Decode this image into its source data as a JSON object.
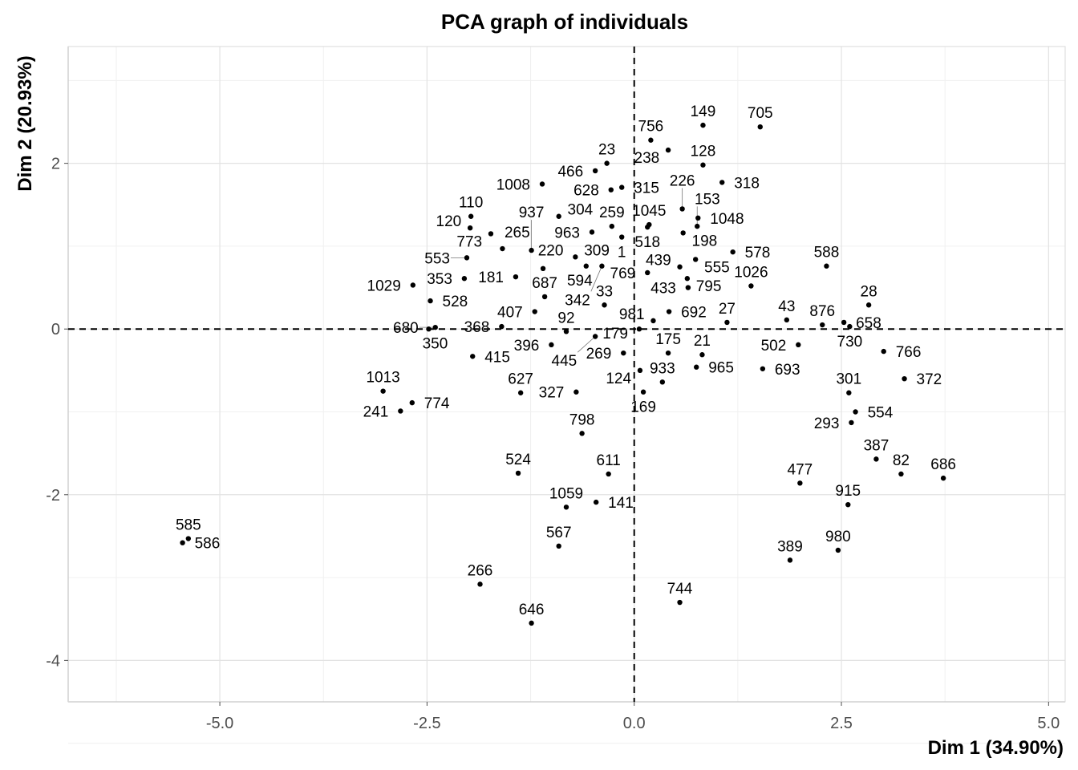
{
  "chart_data": {
    "type": "scatter",
    "title": "PCA graph of individuals",
    "xlabel": "Dim 1 (34.90%)",
    "ylabel": "Dim 2 (20.93%)",
    "xlim": [
      -6.83,
      5.2
    ],
    "ylim": [
      -4.5,
      3.41
    ],
    "x_ticks": [
      -5.0,
      -2.5,
      0.0,
      2.5,
      5.0
    ],
    "x_tick_labels": [
      "-5.0",
      "-2.5",
      "0.0",
      "2.5",
      "5.0"
    ],
    "y_ticks": [
      -4,
      -2,
      0,
      2
    ],
    "y_tick_labels": [
      "-4",
      "-2",
      "0",
      "2"
    ],
    "grid": true,
    "reference_lines": {
      "x": 0,
      "y": 0,
      "style": "dashed"
    },
    "point_color": "#000000",
    "points": [
      {
        "label": "149",
        "x": 0.83,
        "y": 2.46
      },
      {
        "label": "705",
        "x": 1.52,
        "y": 2.44
      },
      {
        "label": "756",
        "x": 0.2,
        "y": 2.28
      },
      {
        "label": "238",
        "x": 0.41,
        "y": 2.16
      },
      {
        "label": "128",
        "x": 0.83,
        "y": 1.98
      },
      {
        "label": "318",
        "x": 1.06,
        "y": 1.77
      },
      {
        "label": "226",
        "x": 0.58,
        "y": 1.45
      },
      {
        "label": "1048",
        "x": 0.77,
        "y": 1.34
      },
      {
        "label": "153",
        "x": 0.76,
        "y": 1.24
      },
      {
        "label": "198",
        "x": 0.59,
        "y": 1.16
      },
      {
        "label": "1045",
        "x": 0.18,
        "y": 1.26
      },
      {
        "label": "518",
        "x": 0.16,
        "y": 1.23
      },
      {
        "label": "578",
        "x": 1.19,
        "y": 0.93
      },
      {
        "label": "555",
        "x": 0.74,
        "y": 0.84
      },
      {
        "label": "439",
        "x": 0.55,
        "y": 0.75
      },
      {
        "label": "795",
        "x": 0.64,
        "y": 0.61
      },
      {
        "label": "433",
        "x": 0.65,
        "y": 0.5
      },
      {
        "label": "769",
        "x": 0.16,
        "y": 0.68
      },
      {
        "label": "1026",
        "x": 1.41,
        "y": 0.52
      },
      {
        "label": "692",
        "x": 0.42,
        "y": 0.21
      },
      {
        "label": "981",
        "x": 0.23,
        "y": 0.1
      },
      {
        "label": "179",
        "x": 0.06,
        "y": 0.0
      },
      {
        "label": "27",
        "x": 1.12,
        "y": 0.08
      },
      {
        "label": "43",
        "x": 1.84,
        "y": 0.11
      },
      {
        "label": "588",
        "x": 2.32,
        "y": 0.76
      },
      {
        "label": "28",
        "x": 2.83,
        "y": 0.29
      },
      {
        "label": "876",
        "x": 2.27,
        "y": 0.05
      },
      {
        "label": "658",
        "x": 2.53,
        "y": 0.08
      },
      {
        "label": "730",
        "x": 2.6,
        "y": 0.03
      },
      {
        "label": "23",
        "x": -0.33,
        "y": 2.0
      },
      {
        "label": "466",
        "x": -0.47,
        "y": 1.91
      },
      {
        "label": "628",
        "x": -0.28,
        "y": 1.68
      },
      {
        "label": "315",
        "x": -0.15,
        "y": 1.71
      },
      {
        "label": "1008",
        "x": -1.11,
        "y": 1.75
      },
      {
        "label": "304",
        "x": -0.91,
        "y": 1.36
      },
      {
        "label": "963",
        "x": -0.51,
        "y": 1.17
      },
      {
        "label": "259",
        "x": -0.27,
        "y": 1.24
      },
      {
        "label": "1",
        "x": -0.15,
        "y": 1.11
      },
      {
        "label": "110",
        "x": -1.97,
        "y": 1.36
      },
      {
        "label": "120",
        "x": -1.98,
        "y": 1.22
      },
      {
        "label": "773",
        "x": -1.73,
        "y": 1.15
      },
      {
        "label": "265",
        "x": -1.59,
        "y": 0.97
      },
      {
        "label": "937",
        "x": -1.24,
        "y": 0.95
      },
      {
        "label": "553",
        "x": -2.02,
        "y": 0.86
      },
      {
        "label": "353",
        "x": -2.05,
        "y": 0.61
      },
      {
        "label": "220",
        "x": -1.1,
        "y": 0.73
      },
      {
        "label": "181",
        "x": -1.43,
        "y": 0.63
      },
      {
        "label": "309",
        "x": -0.71,
        "y": 0.87
      },
      {
        "label": "594",
        "x": -0.58,
        "y": 0.76
      },
      {
        "label": "342",
        "x": -0.39,
        "y": 0.76
      },
      {
        "label": "1029",
        "x": -2.67,
        "y": 0.53
      },
      {
        "label": "528",
        "x": -2.46,
        "y": 0.34
      },
      {
        "label": "680",
        "x": -2.4,
        "y": 0.02
      },
      {
        "label": "350",
        "x": -2.48,
        "y": 0.0
      },
      {
        "label": "687",
        "x": -1.08,
        "y": 0.39
      },
      {
        "label": "407",
        "x": -1.2,
        "y": 0.21
      },
      {
        "label": "368",
        "x": -1.6,
        "y": 0.03
      },
      {
        "label": "33",
        "x": -0.36,
        "y": 0.29
      },
      {
        "label": "92",
        "x": -0.82,
        "y": -0.03
      },
      {
        "label": "445",
        "x": -0.47,
        "y": -0.09
      },
      {
        "label": "396",
        "x": -1.0,
        "y": -0.19
      },
      {
        "label": "269",
        "x": -0.13,
        "y": -0.29
      },
      {
        "label": "415",
        "x": -1.95,
        "y": -0.33
      },
      {
        "label": "175",
        "x": 0.41,
        "y": -0.29
      },
      {
        "label": "21",
        "x": 0.82,
        "y": -0.31
      },
      {
        "label": "965",
        "x": 0.75,
        "y": -0.46
      },
      {
        "label": "124",
        "x": 0.07,
        "y": -0.5
      },
      {
        "label": "933",
        "x": 0.34,
        "y": -0.64
      },
      {
        "label": "169",
        "x": 0.11,
        "y": -0.76
      },
      {
        "label": "502",
        "x": 1.98,
        "y": -0.19
      },
      {
        "label": "693",
        "x": 1.55,
        "y": -0.48
      },
      {
        "label": "766",
        "x": 3.01,
        "y": -0.27
      },
      {
        "label": "372",
        "x": 3.26,
        "y": -0.6
      },
      {
        "label": "301",
        "x": 2.59,
        "y": -0.77
      },
      {
        "label": "554",
        "x": 2.67,
        "y": -1.0
      },
      {
        "label": "293",
        "x": 2.62,
        "y": -1.13
      },
      {
        "label": "1013",
        "x": -3.03,
        "y": -0.75
      },
      {
        "label": "774",
        "x": -2.68,
        "y": -0.89
      },
      {
        "label": "241",
        "x": -2.82,
        "y": -0.99
      },
      {
        "label": "627",
        "x": -1.37,
        "y": -0.77
      },
      {
        "label": "327",
        "x": -0.7,
        "y": -0.76
      },
      {
        "label": "798",
        "x": -0.63,
        "y": -1.26
      },
      {
        "label": "387",
        "x": 2.92,
        "y": -1.57
      },
      {
        "label": "82",
        "x": 3.22,
        "y": -1.75
      },
      {
        "label": "686",
        "x": 3.73,
        "y": -1.8
      },
      {
        "label": "477",
        "x": 2.0,
        "y": -1.86
      },
      {
        "label": "915",
        "x": 2.58,
        "y": -2.12
      },
      {
        "label": "524",
        "x": -1.4,
        "y": -1.74
      },
      {
        "label": "611",
        "x": -0.31,
        "y": -1.75
      },
      {
        "label": "141",
        "x": -0.46,
        "y": -2.09
      },
      {
        "label": "1059",
        "x": -0.82,
        "y": -2.15
      },
      {
        "label": "567",
        "x": -0.91,
        "y": -2.62
      },
      {
        "label": "266",
        "x": -1.86,
        "y": -3.08
      },
      {
        "label": "646",
        "x": -1.24,
        "y": -3.55
      },
      {
        "label": "744",
        "x": 0.55,
        "y": -3.3
      },
      {
        "label": "389",
        "x": 1.88,
        "y": -2.79
      },
      {
        "label": "980",
        "x": 2.46,
        "y": -2.67
      },
      {
        "label": "585",
        "x": -5.38,
        "y": -2.53
      },
      {
        "label": "586",
        "x": -5.45,
        "y": -2.58
      }
    ]
  }
}
